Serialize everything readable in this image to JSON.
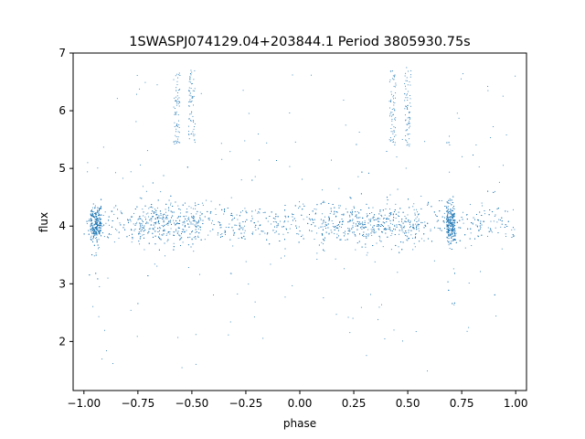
{
  "chart_data": {
    "type": "scatter",
    "title": "1SWASPJ074129.04+203844.1 Period 3805930.75s",
    "xlabel": "phase",
    "ylabel": "flux",
    "xlim": [
      -1.05,
      1.05
    ],
    "ylim": [
      1.15,
      7.0
    ],
    "xticks": [
      -1.0,
      -0.75,
      -0.5,
      -0.25,
      0.0,
      0.25,
      0.5,
      0.75,
      1.0
    ],
    "xtick_labels": [
      "−1.00",
      "−0.75",
      "−0.50",
      "−0.25",
      "0.00",
      "0.25",
      "0.50",
      "0.75",
      "1.00"
    ],
    "yticks": [
      2,
      3,
      4,
      5,
      6,
      7
    ],
    "ytick_labels": [
      "2",
      "3",
      "4",
      "5",
      "6",
      "7"
    ],
    "grid": false,
    "point_color": "#1f77b4",
    "baseline_flux": 4.05,
    "typical_scatter": 0.3,
    "flare_phases": [
      -0.57,
      -0.5,
      0.43,
      0.5
    ],
    "flare_flux_range": [
      5.4,
      6.7
    ],
    "dense_phase_bands": [
      [
        -0.97,
        -0.92
      ],
      [
        -0.75,
        -0.45
      ],
      [
        0.1,
        0.55
      ],
      [
        0.68,
        0.72
      ]
    ]
  }
}
